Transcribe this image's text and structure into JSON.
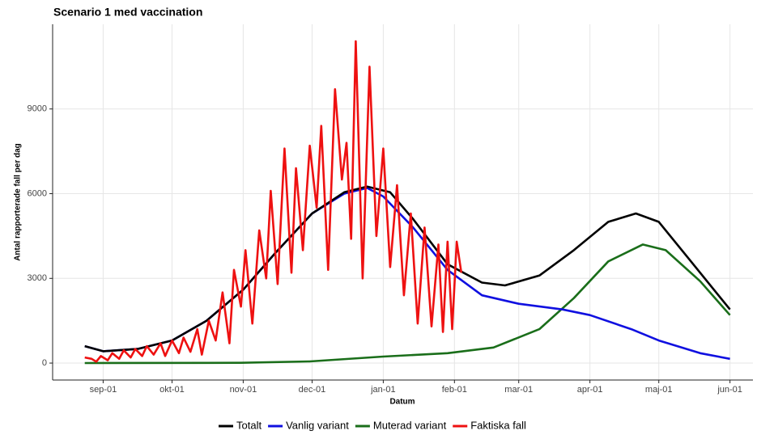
{
  "chart_data": {
    "type": "line",
    "title": "Scenario 1 med vaccination",
    "x_label": "Datum",
    "y_label": "Antal rapporterade fall per dag",
    "xlim": [
      -22,
      283
    ],
    "xticks": [
      {
        "value": 0,
        "label": "sep-01"
      },
      {
        "value": 30,
        "label": "okt-01"
      },
      {
        "value": 61,
        "label": "nov-01"
      },
      {
        "value": 91,
        "label": "dec-01"
      },
      {
        "value": 122,
        "label": "jan-01"
      },
      {
        "value": 153,
        "label": "feb-01"
      },
      {
        "value": 181,
        "label": "mar-01"
      },
      {
        "value": 212,
        "label": "apr-01"
      },
      {
        "value": 242,
        "label": "maj-01"
      },
      {
        "value": 273,
        "label": "jun-01"
      }
    ],
    "ylim": [
      -600,
      12000
    ],
    "yticks": [
      0,
      3000,
      6000,
      9000
    ],
    "grid": true,
    "legend": "bottom",
    "series": [
      {
        "name": "Totalt",
        "color": "#000000",
        "x": [
          -8,
          0,
          15,
          30,
          45,
          61,
          75,
          91,
          105,
          115,
          125,
          135,
          150,
          165,
          175,
          190,
          205,
          220,
          232,
          242,
          255,
          273
        ],
        "values": [
          600,
          420,
          500,
          800,
          1500,
          2600,
          3900,
          5300,
          6050,
          6250,
          6050,
          5100,
          3500,
          2850,
          2750,
          3100,
          4000,
          5000,
          5300,
          5000,
          3700,
          1900
        ]
      },
      {
        "name": "Vanlig variant",
        "color": "#1010e0",
        "x": [
          -8,
          0,
          15,
          30,
          45,
          61,
          75,
          91,
          105,
          115,
          122,
          135,
          150,
          165,
          181,
          200,
          212,
          230,
          242,
          260,
          273
        ],
        "values": [
          600,
          420,
          500,
          800,
          1500,
          2600,
          3900,
          5300,
          6000,
          6200,
          5900,
          4800,
          3300,
          2400,
          2100,
          1900,
          1700,
          1200,
          800,
          350,
          150
        ]
      },
      {
        "name": "Muterad variant",
        "color": "#1a6e1a",
        "x": [
          -8,
          60,
          90,
          122,
          150,
          170,
          190,
          205,
          220,
          235,
          245,
          260,
          273
        ],
        "values": [
          0,
          10,
          60,
          230,
          350,
          550,
          1200,
          2300,
          3600,
          4200,
          4000,
          2900,
          1700
        ]
      },
      {
        "name": "Faktiska fall",
        "color": "#ee1111",
        "x": [
          -8,
          -5,
          -3,
          -1,
          2,
          4,
          7,
          9,
          12,
          14,
          17,
          19,
          22,
          25,
          27,
          30,
          33,
          35,
          38,
          41,
          43,
          46,
          49,
          52,
          55,
          57,
          60,
          62,
          65,
          68,
          71,
          73,
          76,
          79,
          82,
          84,
          87,
          90,
          93,
          95,
          98,
          101,
          104,
          106,
          108,
          110,
          113,
          116,
          119,
          122,
          125,
          128,
          131,
          134,
          137,
          140,
          143,
          146,
          148,
          150,
          152,
          154,
          156
        ],
        "values": [
          200,
          150,
          50,
          250,
          100,
          350,
          150,
          450,
          200,
          500,
          250,
          600,
          300,
          700,
          250,
          800,
          350,
          900,
          400,
          1200,
          300,
          1500,
          800,
          2500,
          700,
          3300,
          2000,
          4000,
          1400,
          4700,
          3000,
          6100,
          2800,
          7600,
          3200,
          6900,
          4000,
          7700,
          5500,
          8400,
          3300,
          9700,
          6500,
          7800,
          4400,
          11400,
          3000,
          10500,
          4500,
          7600,
          3400,
          6300,
          2400,
          5300,
          1400,
          4800,
          1300,
          4200,
          1100,
          4300,
          1200,
          4300,
          3200
        ]
      }
    ]
  }
}
